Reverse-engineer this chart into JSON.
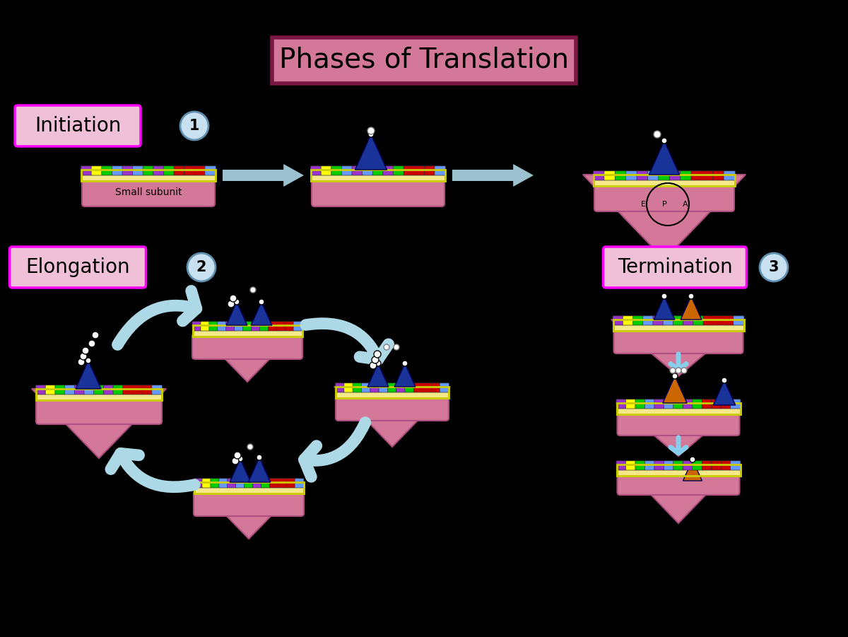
{
  "background_color": "#000000",
  "title": "Phases of Translation",
  "title_box_color": "#d4789a",
  "title_box_edge": "#7a1842",
  "title_fontsize": 28,
  "ribosome_color": "#d4789a",
  "ribosome_edge": "#b05080",
  "mRNA_color": "#f5e98a",
  "mRNA_edge": "#cccc00",
  "label_box_color": "#f0c0d8",
  "label_box_edge": "#ff00ff",
  "num_circle_color": "#c8e0f0",
  "num_circle_edge": "#6090b0",
  "arrow_color": "#add8e6",
  "tRNA_blue": "#1a3399",
  "tRNA_orange": "#cc6600",
  "tRNA_edge": "#000055",
  "codon_colors": [
    "#9933cc",
    "#ffff00",
    "#00cc00",
    "#6699ff",
    "#9933cc",
    "#6699ff",
    "#00cc00",
    "#9933cc",
    "#00cc00",
    "#cc0000",
    "#cc0000",
    "#cc0000",
    "#6699ff"
  ],
  "small_subunit_text": "Small subunit",
  "epa_labels": [
    "E",
    "P",
    "A"
  ]
}
